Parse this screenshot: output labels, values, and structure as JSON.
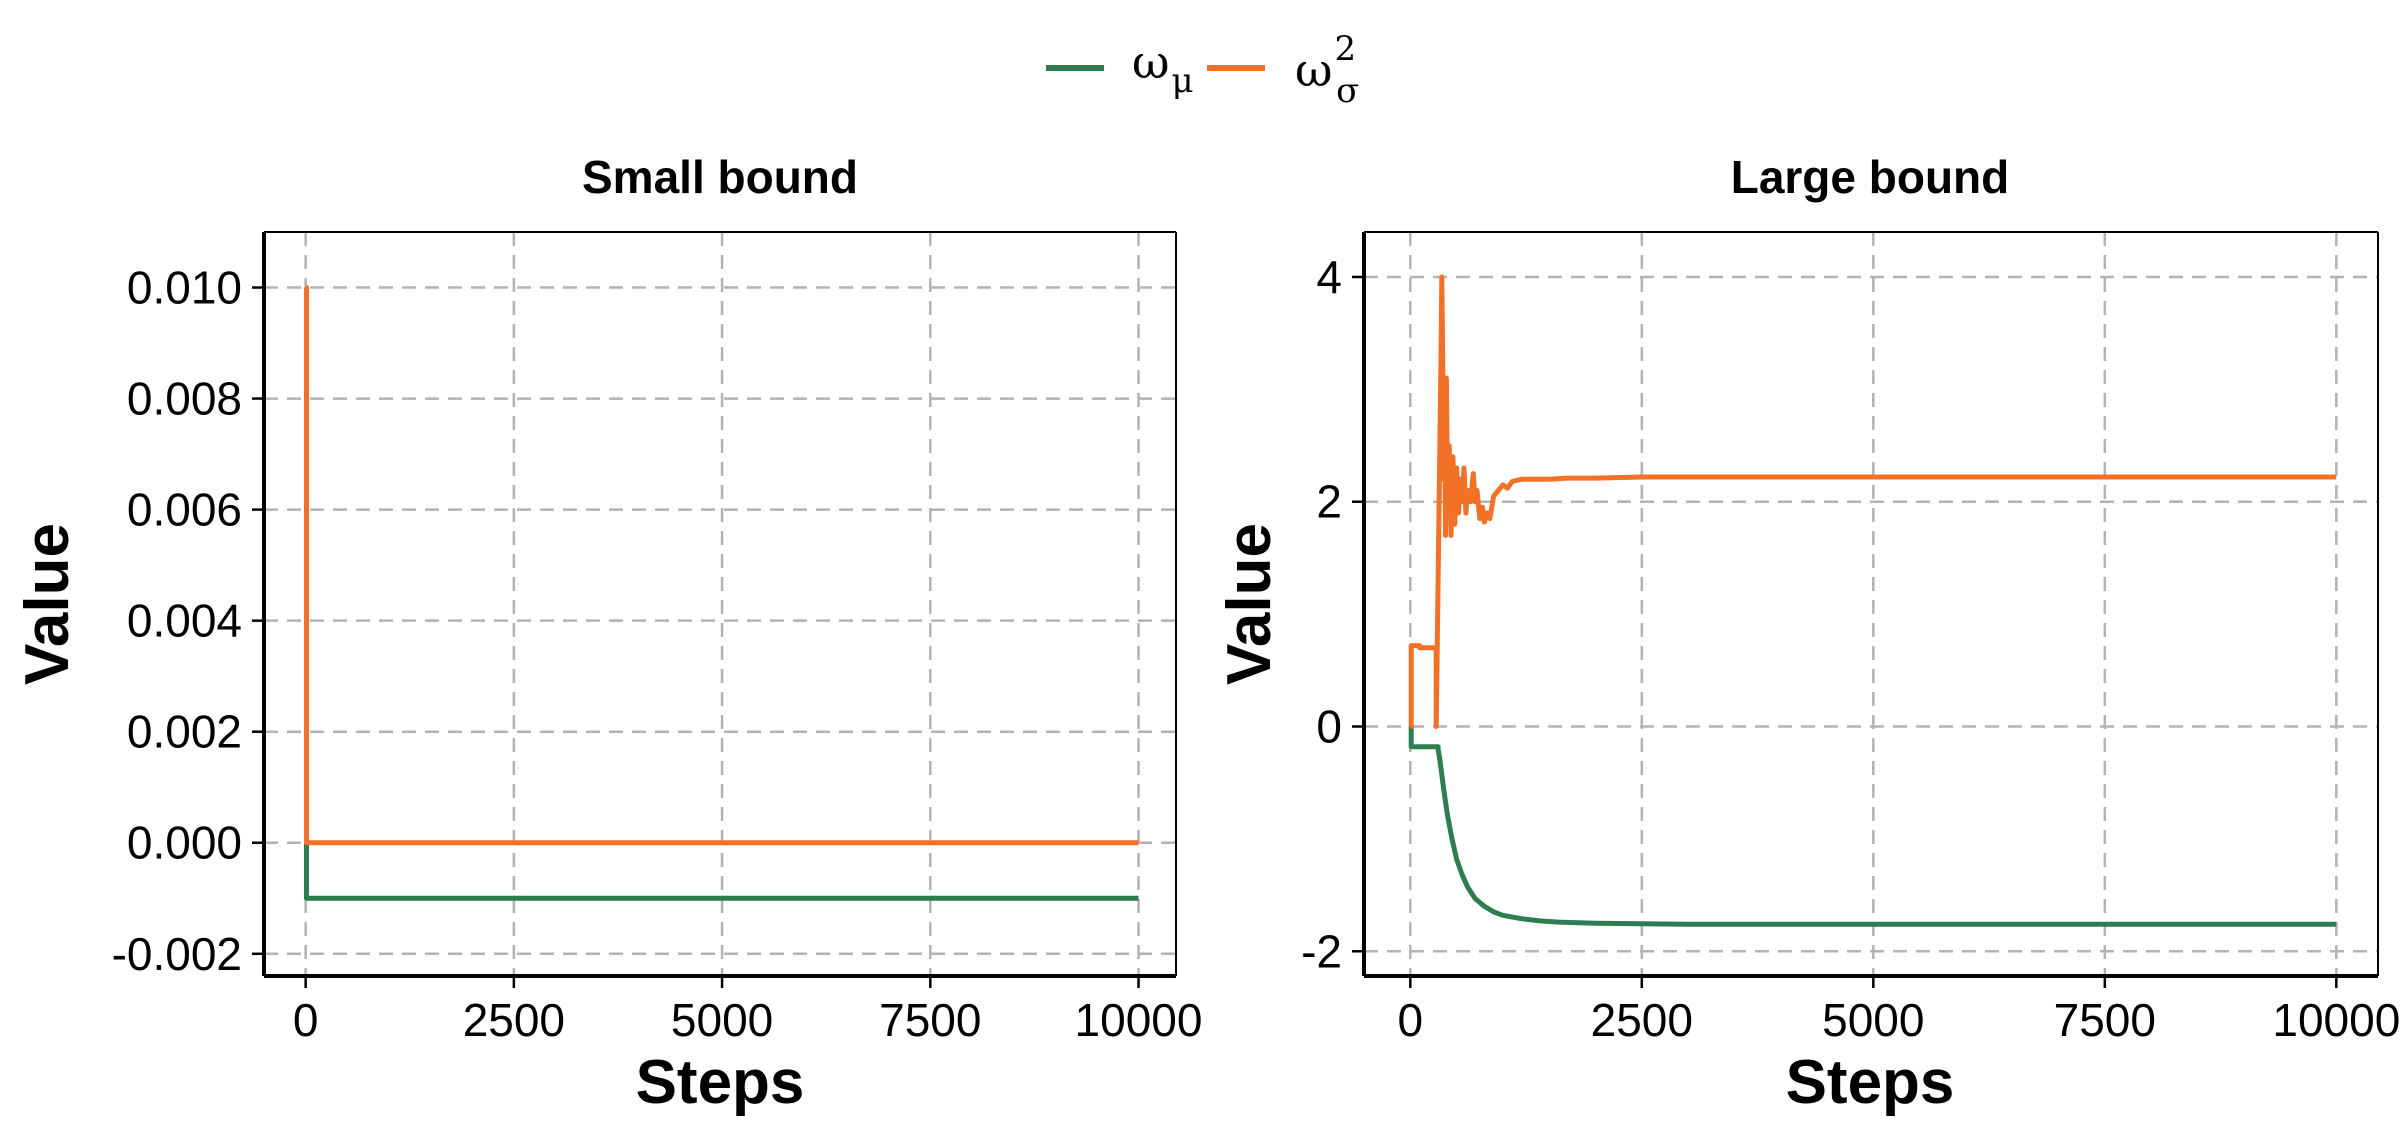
{
  "legend": [
    {
      "key": "omega_mu",
      "symbol": "ω",
      "sub": "μ",
      "sup": "",
      "color": "#2e7d4f"
    },
    {
      "key": "omega_sigma2",
      "symbol": "ω",
      "sub": "σ",
      "sup": "2",
      "color": "#f37027"
    }
  ],
  "chart_data": [
    {
      "type": "line",
      "title": "Small bound",
      "xlabel": "Steps",
      "ylabel": "Value",
      "xlim": [
        -500,
        10450
      ],
      "ylim": [
        -0.0024,
        0.011
      ],
      "xticks": [
        0,
        2500,
        5000,
        7500,
        10000
      ],
      "xtick_labels": [
        "0",
        "2500",
        "5000",
        "7500",
        "10000"
      ],
      "yticks": [
        -0.002,
        0.0,
        0.002,
        0.004,
        0.006,
        0.008,
        0.01
      ],
      "ytick_labels": [
        "-0.002",
        "0.000",
        "0.002",
        "0.004",
        "0.006",
        "0.008",
        "0.010"
      ],
      "grid": true,
      "series": [
        {
          "name": "ω_μ",
          "color": "#2e7d4f",
          "x": [
            0,
            10,
            10,
            10000
          ],
          "y": [
            0.0,
            0.0,
            -0.001,
            -0.001
          ]
        },
        {
          "name": "ω_σ²",
          "color": "#f37027",
          "x": [
            0,
            10,
            10,
            10000
          ],
          "y": [
            0.01,
            0.01,
            0.0,
            0.0
          ]
        }
      ]
    },
    {
      "type": "line",
      "title": "Large bound",
      "xlabel": "Steps",
      "ylabel": "Value",
      "xlim": [
        -500,
        10450
      ],
      "ylim": [
        -2.22,
        4.4
      ],
      "xticks": [
        0,
        2500,
        5000,
        7500,
        10000
      ],
      "xtick_labels": [
        "0",
        "2500",
        "5000",
        "7500",
        "10000"
      ],
      "yticks": [
        -2,
        0,
        2,
        4
      ],
      "ytick_labels": [
        "-2",
        "0",
        "2",
        "4"
      ],
      "grid": true,
      "series": [
        {
          "name": "ω_μ",
          "color": "#2e7d4f",
          "x": [
            0,
            10,
            10,
            300,
            300,
            320,
            360,
            400,
            450,
            500,
            560,
            620,
            700,
            800,
            900,
            1000,
            1200,
            1400,
            1600,
            2000,
            2500,
            3000,
            4000,
            6000,
            8000,
            10000
          ],
          "y": [
            0,
            0,
            -0.18,
            -0.18,
            -0.2,
            -0.3,
            -0.55,
            -0.78,
            -1.0,
            -1.18,
            -1.32,
            -1.43,
            -1.53,
            -1.6,
            -1.65,
            -1.68,
            -1.71,
            -1.73,
            -1.74,
            -1.75,
            -1.755,
            -1.76,
            -1.76,
            -1.76,
            -1.76,
            -1.76
          ]
        },
        {
          "name": "ω_σ²",
          "color": "#f37027",
          "x": [
            0,
            10,
            10,
            100,
            100,
            280,
            280,
            300,
            330,
            340,
            350,
            360,
            370,
            380,
            390,
            400,
            410,
            420,
            440,
            460,
            480,
            500,
            520,
            540,
            560,
            580,
            600,
            620,
            650,
            680,
            700,
            720,
            750,
            780,
            800,
            830,
            860,
            900,
            950,
            1000,
            1050,
            1100,
            1200,
            1300,
            1500,
            1700,
            2000,
            2500,
            3000,
            4000,
            6000,
            8000,
            10000
          ],
          "y": [
            0,
            0,
            0.72,
            0.72,
            0.7,
            0.7,
            0.0,
            1.3,
            3.2,
            4.0,
            3.3,
            2.2,
            2.7,
            1.7,
            3.1,
            2.3,
            1.9,
            2.5,
            1.7,
            2.4,
            1.8,
            2.3,
            1.9,
            2.2,
            2.0,
            2.3,
            1.9,
            2.1,
            2.0,
            2.25,
            2.0,
            2.1,
            1.85,
            1.95,
            1.82,
            1.9,
            1.85,
            2.05,
            2.1,
            2.15,
            2.12,
            2.18,
            2.2,
            2.2,
            2.2,
            2.21,
            2.21,
            2.22,
            2.22,
            2.22,
            2.22,
            2.22,
            2.22
          ]
        }
      ]
    }
  ]
}
